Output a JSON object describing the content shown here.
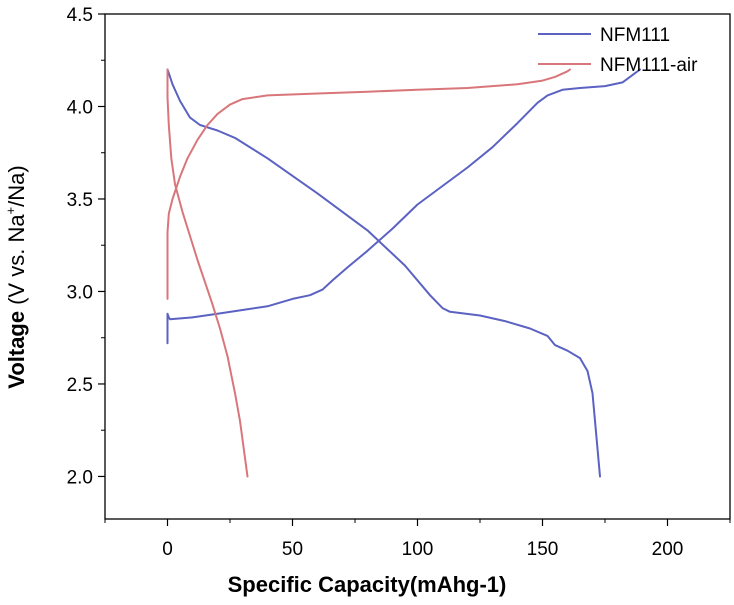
{
  "chart_data": {
    "type": "line",
    "xlabel": "Specific Capacity(mAhg-1)",
    "ylabel": {
      "prefix": "Voltage",
      "paren": "(V vs. Na",
      "sup": "+",
      "suffix": "/Na)"
    },
    "xlim": [
      -25,
      225
    ],
    "ylim": [
      1.77,
      4.5
    ],
    "x_ticks": [
      0,
      50,
      100,
      150,
      200
    ],
    "y_ticks": [
      2.0,
      2.5,
      3.0,
      3.5,
      4.0,
      4.5
    ],
    "x_tick_labels": [
      "0",
      "50",
      "100",
      "150",
      "200"
    ],
    "y_tick_labels": [
      "2.0",
      "2.5",
      "3.0",
      "3.5",
      "4.0",
      "4.5"
    ],
    "grid": false,
    "legend_position": "top-right",
    "series": [
      {
        "name": "NFM111",
        "color": "#5b62c2",
        "segments": [
          [
            [
              0,
              2.72
            ],
            [
              0,
              2.88
            ],
            [
              0.5,
              2.86
            ],
            [
              1,
              2.85
            ],
            [
              10,
              2.86
            ],
            [
              20,
              2.88
            ],
            [
              30,
              2.9
            ],
            [
              40,
              2.92
            ],
            [
              50,
              2.96
            ],
            [
              57,
              2.98
            ],
            [
              62,
              3.01
            ],
            [
              66,
              3.06
            ],
            [
              72,
              3.13
            ],
            [
              80,
              3.22
            ],
            [
              90,
              3.34
            ],
            [
              100,
              3.47
            ],
            [
              110,
              3.57
            ],
            [
              120,
              3.67
            ],
            [
              130,
              3.78
            ],
            [
              140,
              3.91
            ],
            [
              148,
              4.02
            ],
            [
              152,
              4.06
            ],
            [
              158,
              4.09
            ],
            [
              165,
              4.1
            ],
            [
              175,
              4.11
            ],
            [
              182,
              4.13
            ],
            [
              187,
              4.18
            ],
            [
              189,
              4.2
            ]
          ],
          [
            [
              0,
              4.2
            ],
            [
              0.5,
              4.18
            ],
            [
              2,
              4.12
            ],
            [
              5,
              4.03
            ],
            [
              9,
              3.94
            ],
            [
              13,
              3.9
            ],
            [
              20,
              3.87
            ],
            [
              27,
              3.83
            ],
            [
              40,
              3.72
            ],
            [
              60,
              3.53
            ],
            [
              80,
              3.33
            ],
            [
              95,
              3.14
            ],
            [
              105,
              2.98
            ],
            [
              110,
              2.91
            ],
            [
              113,
              2.89
            ],
            [
              125,
              2.87
            ],
            [
              135,
              2.84
            ],
            [
              145,
              2.8
            ],
            [
              152,
              2.76
            ],
            [
              155,
              2.71
            ],
            [
              160,
              2.68
            ],
            [
              165,
              2.64
            ],
            [
              168,
              2.57
            ],
            [
              170,
              2.45
            ],
            [
              171,
              2.3
            ],
            [
              172,
              2.15
            ],
            [
              173,
              2.0
            ]
          ]
        ]
      },
      {
        "name": "NFM111-air",
        "color": "#d8767a",
        "segments": [
          [
            [
              0,
              2.96
            ],
            [
              0,
              3.12
            ],
            [
              0,
              3.32
            ],
            [
              0.5,
              3.42
            ],
            [
              2,
              3.5
            ],
            [
              5,
              3.62
            ],
            [
              8,
              3.72
            ],
            [
              12,
              3.82
            ],
            [
              16,
              3.9
            ],
            [
              20,
              3.96
            ],
            [
              25,
              4.01
            ],
            [
              30,
              4.04
            ],
            [
              40,
              4.06
            ],
            [
              60,
              4.07
            ],
            [
              80,
              4.08
            ],
            [
              100,
              4.09
            ],
            [
              120,
              4.1
            ],
            [
              140,
              4.12
            ],
            [
              150,
              4.14
            ],
            [
              155,
              4.16
            ],
            [
              160,
              4.19
            ],
            [
              161,
              4.2
            ]
          ],
          [
            [
              0,
              4.2
            ],
            [
              0,
              4.05
            ],
            [
              0.5,
              3.9
            ],
            [
              1.5,
              3.72
            ],
            [
              3,
              3.58
            ],
            [
              6,
              3.43
            ],
            [
              9,
              3.3
            ],
            [
              12,
              3.17
            ],
            [
              15,
              3.05
            ],
            [
              18,
              2.93
            ],
            [
              21,
              2.8
            ],
            [
              24,
              2.65
            ],
            [
              27,
              2.45
            ],
            [
              29,
              2.3
            ],
            [
              31,
              2.1
            ],
            [
              32,
              2.0
            ]
          ]
        ]
      }
    ]
  }
}
